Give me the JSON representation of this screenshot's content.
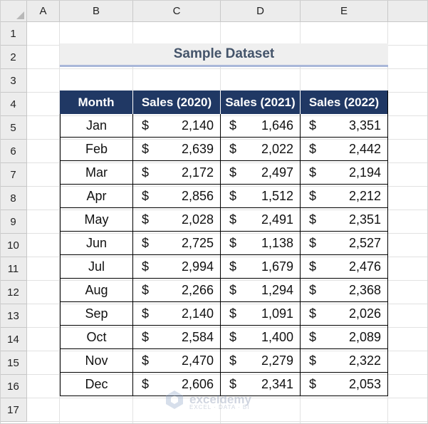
{
  "spreadsheet": {
    "columns": [
      "A",
      "B",
      "C",
      "D",
      "E"
    ],
    "rows": [
      "1",
      "2",
      "3",
      "4",
      "5",
      "6",
      "7",
      "8",
      "9",
      "10",
      "11",
      "12",
      "13",
      "14",
      "15",
      "16",
      "17"
    ]
  },
  "title": "Sample Dataset",
  "table": {
    "headers": [
      "Month",
      "Sales (2020)",
      "Sales (2021)",
      "Sales (2022)"
    ],
    "currency_symbol": "$",
    "rows": [
      {
        "month": "Jan",
        "s2020": "2,140",
        "s2021": "1,646",
        "s2022": "3,351"
      },
      {
        "month": "Feb",
        "s2020": "2,639",
        "s2021": "2,022",
        "s2022": "2,442"
      },
      {
        "month": "Mar",
        "s2020": "2,172",
        "s2021": "2,497",
        "s2022": "2,194"
      },
      {
        "month": "Apr",
        "s2020": "2,856",
        "s2021": "1,512",
        "s2022": "2,212"
      },
      {
        "month": "May",
        "s2020": "2,028",
        "s2021": "2,491",
        "s2022": "2,351"
      },
      {
        "month": "Jun",
        "s2020": "2,725",
        "s2021": "1,138",
        "s2022": "2,527"
      },
      {
        "month": "Jul",
        "s2020": "2,994",
        "s2021": "1,679",
        "s2022": "2,476"
      },
      {
        "month": "Aug",
        "s2020": "2,266",
        "s2021": "1,294",
        "s2022": "2,368"
      },
      {
        "month": "Sep",
        "s2020": "2,140",
        "s2021": "1,091",
        "s2022": "2,026"
      },
      {
        "month": "Oct",
        "s2020": "2,584",
        "s2021": "1,400",
        "s2022": "2,089"
      },
      {
        "month": "Nov",
        "s2020": "2,470",
        "s2021": "2,279",
        "s2022": "2,322"
      },
      {
        "month": "Dec",
        "s2020": "2,606",
        "s2021": "2,341",
        "s2022": "2,053"
      }
    ]
  },
  "watermark": {
    "name": "exceldemy",
    "tagline": "EXCEL · DATA · BI",
    "icon": "exceldemy-logo-icon"
  },
  "colors": {
    "header_fill": "#203864",
    "title_text": "#44546a",
    "title_underline": "#a9b7d9"
  }
}
